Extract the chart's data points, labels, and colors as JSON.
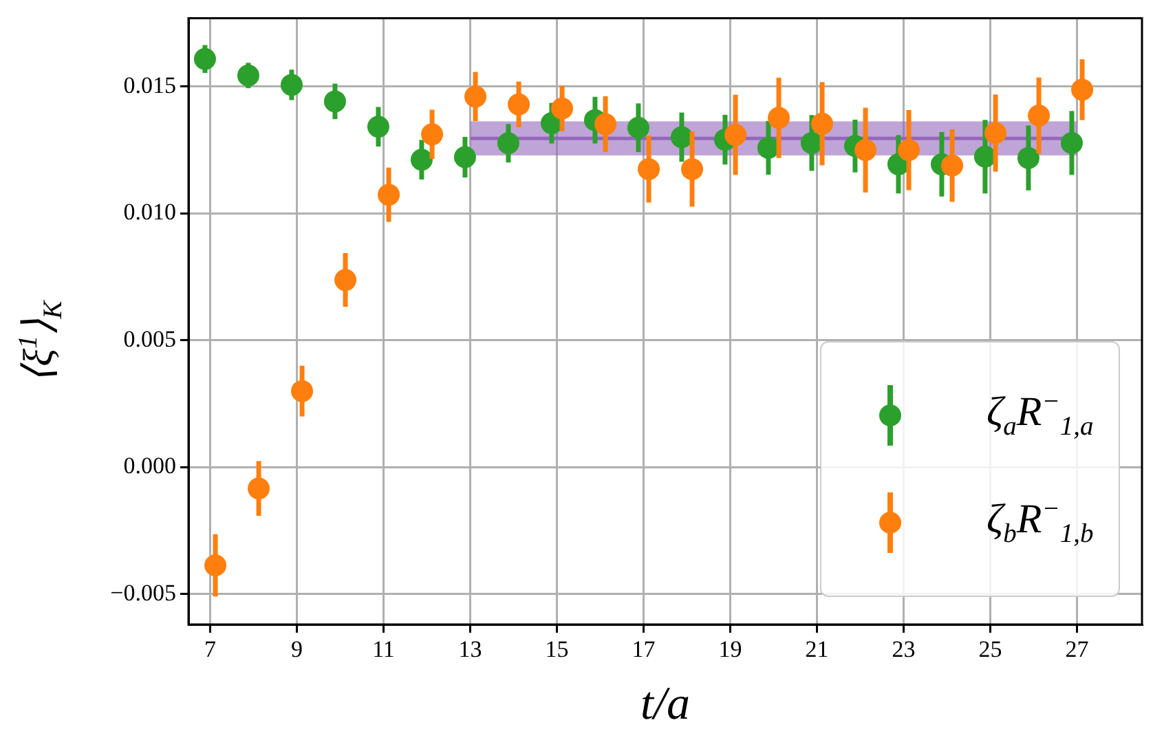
{
  "chart_data": {
    "type": "scatter",
    "xlabel": "t/a",
    "ylabel": "⟨ξ$^{1}$⟩$_{K}$",
    "xlim": [
      6.5,
      28.5
    ],
    "xticks": [
      7,
      9,
      11,
      13,
      15,
      17,
      19,
      21,
      23,
      25,
      27
    ],
    "ylim": [
      -0.0062,
      0.0177
    ],
    "yticks": [
      {
        "value": -0.005,
        "label": "−0.005"
      },
      {
        "value": 0,
        "label": "0.000"
      },
      {
        "value": 0.005,
        "label": "0.005"
      },
      {
        "value": 0.01,
        "label": "0.010"
      },
      {
        "value": 0.015,
        "label": "0.015"
      }
    ],
    "grid": true,
    "legend": "bottom right",
    "marker": "circle",
    "series": [
      {
        "type": "line",
        "marker": "none",
        "color": "#9467bd",
        "x": [
          13,
          27
        ],
        "values": [
          0.01296,
          0.01296
        ],
        "lower": [
          0.01229,
          0.01229
        ],
        "upper": [
          0.01363,
          0.01363
        ]
      },
      {
        "name": "ζ$_{a}$R$^{−}$$_{1,a}$",
        "color": "#2ca02c",
        "x": [
          6.88,
          7.88,
          8.88,
          9.88,
          10.88,
          11.88,
          12.88,
          13.88,
          14.88,
          15.88,
          16.88,
          17.88,
          18.88,
          19.88,
          20.88,
          21.88,
          22.88,
          23.88,
          24.88,
          25.88,
          26.88
        ],
        "values": [
          0.01609,
          0.01544,
          0.01507,
          0.01442,
          0.01342,
          0.01212,
          0.01222,
          0.01277,
          0.01356,
          0.01368,
          0.01338,
          0.01301,
          0.01291,
          0.01259,
          0.01278,
          0.01266,
          0.01194,
          0.01194,
          0.01224,
          0.01219,
          0.01278
        ],
        "errors": [
          0.00055,
          0.0005,
          0.0006,
          0.0007,
          0.00078,
          0.00078,
          0.0008,
          0.00076,
          0.0008,
          0.00092,
          0.00096,
          0.00097,
          0.00098,
          0.00106,
          0.0011,
          0.00104,
          0.00115,
          0.00127,
          0.00145,
          0.00128,
          0.00126
        ]
      },
      {
        "name": "ζ$_{b}$R$^{−}$$_{1,b}$",
        "color": "#ff7f0e",
        "x": [
          7.12,
          8.12,
          9.12,
          10.12,
          11.12,
          12.12,
          13.12,
          14.12,
          15.12,
          16.12,
          17.12,
          18.12,
          19.12,
          20.12,
          21.12,
          22.12,
          23.12,
          24.12,
          25.12,
          26.12,
          27.12
        ],
        "values": [
          -0.00387,
          -0.00084,
          0.003,
          0.00738,
          0.01074,
          0.01312,
          0.01461,
          0.0143,
          0.01414,
          0.01352,
          0.01175,
          0.01175,
          0.0131,
          0.01377,
          0.01354,
          0.0125,
          0.0125,
          0.01189,
          0.01317,
          0.01386,
          0.01488
        ],
        "errors": [
          0.00123,
          0.00108,
          0.001,
          0.00106,
          0.00107,
          0.00097,
          0.00097,
          0.0009,
          0.0009,
          0.0011,
          0.00132,
          0.00148,
          0.00158,
          0.00158,
          0.00164,
          0.00167,
          0.00158,
          0.00143,
          0.00152,
          0.0015,
          0.0012
        ]
      }
    ]
  }
}
